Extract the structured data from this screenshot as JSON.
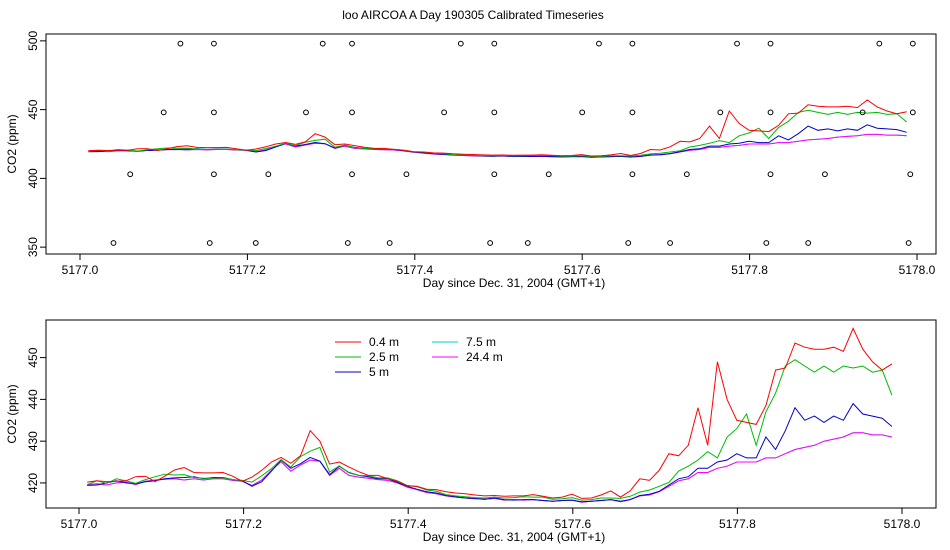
{
  "title": "loo AIRCOA A  Day 190305  Calibrated Timeseries",
  "chart_data": [
    {
      "type": "line",
      "xlabel": "Day since Dec. 31, 2004 (GMT+1)",
      "ylabel": "CO2 (ppm)",
      "xlim": [
        4.97,
        6.02
      ],
      "ylim": [
        345,
        505
      ],
      "xticks": [
        5177.0,
        5177.2,
        5177.4,
        5177.6,
        5177.8,
        5178.0
      ],
      "xtick_labels": [
        "5177.0",
        "5177.2",
        "5177.4",
        "5177.6",
        "5177.8",
        "5178.0"
      ],
      "yticks": [
        350,
        400,
        450,
        500
      ],
      "ytick_labels": [
        "350",
        "400",
        "450",
        "500"
      ],
      "series": [
        {
          "name": "0.4 m",
          "color": "#ff0000",
          "values": [
            420.2,
            420.5,
            420.3,
            420.4,
            420.5,
            421.5,
            421.6,
            420.3,
            421.6,
            423.1,
            423.7,
            422.5,
            422.4,
            422.4,
            422.5,
            421.6,
            420.4,
            421.4,
            423.0,
            425.0,
            426.1,
            424.7,
            426.5,
            432.5,
            430.0,
            424.5,
            425.0,
            423.8,
            422.7,
            421.8,
            421.8,
            421.0,
            420.4,
            419.3,
            419.2,
            418.5,
            418.4,
            417.9,
            417.6,
            417.4,
            417.1,
            416.9,
            417.0,
            416.8,
            416.9,
            416.9,
            417.2,
            416.8,
            416.4,
            416.6,
            417.3,
            416.3,
            416.4,
            417.1,
            418.1,
            416.6,
            418.1,
            421.0,
            420.6,
            423.0,
            427.0,
            426.5,
            429.0,
            438.0,
            429.0,
            449.0,
            440.0,
            435.0,
            434.5,
            434.0,
            438.5,
            447.0,
            447.5,
            453.5,
            452.5,
            452.0,
            452.0,
            452.5,
            451.5,
            457.0,
            452.0,
            449.0,
            447.0,
            448.5
          ]
        },
        {
          "name": "2.5 m",
          "color": "#00bb00",
          "values": [
            419.6,
            420.5,
            419.9,
            421.0,
            420.5,
            419.9,
            420.8,
            421.5,
            422.1,
            421.9,
            422.0,
            421.3,
            421.1,
            421.1,
            421.2,
            420.8,
            420.6,
            420.2,
            421.7,
            423.4,
            425.6,
            423.8,
            426.3,
            427.6,
            428.5,
            422.6,
            424.1,
            422.4,
            421.8,
            421.7,
            421.2,
            421.2,
            420.5,
            419.4,
            419.1,
            418.3,
            418.0,
            417.2,
            416.9,
            416.7,
            416.5,
            416.4,
            416.6,
            416.4,
            416.5,
            416.7,
            416.6,
            416.6,
            416.1,
            416.2,
            416.5,
            415.9,
            416.0,
            416.4,
            416.4,
            416.3,
            416.8,
            417.8,
            418.3,
            419.2,
            420.1,
            422.8,
            424.0,
            425.5,
            427.5,
            426.0,
            431.0,
            433.0,
            436.5,
            429.0,
            437.0,
            441.5,
            448.0,
            449.5,
            448.0,
            446.5,
            448.0,
            446.5,
            448.0,
            447.5,
            448.0,
            446.5,
            447.0,
            441.0
          ]
        },
        {
          "name": "5 m",
          "color": "#0000cc",
          "values": [
            419.4,
            419.5,
            420.0,
            420.5,
            420.0,
            419.8,
            420.3,
            420.5,
            421.0,
            421.2,
            421.3,
            421.5,
            421.0,
            421.3,
            421.3,
            420.8,
            420.5,
            419.2,
            420.3,
            422.8,
            425.5,
            423.5,
            424.6,
            426.1,
            425.2,
            422.0,
            424.0,
            422.5,
            421.8,
            421.5,
            421.0,
            421.0,
            420.1,
            419.2,
            418.5,
            417.9,
            417.6,
            417.0,
            416.7,
            416.4,
            416.3,
            416.1,
            416.4,
            416.0,
            415.9,
            416.0,
            416.0,
            415.8,
            415.6,
            415.8,
            415.9,
            415.5,
            415.6,
            415.8,
            416.0,
            415.6,
            416.0,
            417.0,
            417.3,
            418.0,
            419.5,
            421.0,
            421.5,
            423.5,
            423.5,
            425.0,
            425.5,
            427.0,
            426.0,
            426.0,
            431.0,
            428.0,
            432.5,
            438.0,
            435.0,
            436.0,
            434.5,
            436.0,
            435.0,
            439.0,
            436.5,
            436.0,
            435.5,
            433.5
          ]
        },
        {
          "name": "7.5 m",
          "color": "#00cccc",
          "values": [
            419.6,
            419.8,
            419.5,
            420.0,
            420.2,
            419.6,
            420.4,
            420.7,
            420.9,
            421.0,
            420.7,
            421.0,
            420.7,
            421.0,
            421.0,
            420.6,
            420.4,
            419.4,
            420.7,
            423.0,
            425.1,
            422.8,
            424.3,
            425.5,
            425.2,
            421.8,
            423.5,
            421.8,
            421.4,
            421.1,
            420.8,
            420.6,
            420.0,
            419.0,
            418.4,
            417.7,
            417.4,
            416.9,
            416.6,
            416.4,
            416.2,
            416.1,
            416.3,
            415.9,
            416.0,
            415.9,
            416.0,
            415.8,
            415.6,
            415.8,
            415.9,
            415.4,
            415.6,
            415.8,
            416.0,
            415.5,
            416.0,
            416.9,
            417.1,
            417.9,
            419.2,
            420.5,
            421.0,
            422.5,
            422.5,
            423.5,
            424.0,
            425.0,
            425.0,
            425.0,
            426.0,
            426.0,
            427.0,
            428.0,
            428.5,
            429.0,
            430.0,
            430.5,
            431.0,
            432.0,
            432.0,
            431.5,
            431.5,
            431.0
          ]
        },
        {
          "name": "24.4 m",
          "color": "#ff00ff",
          "values": [
            419.6,
            419.8,
            419.5,
            420.0,
            420.2,
            419.6,
            420.4,
            420.7,
            420.9,
            421.0,
            420.7,
            421.0,
            420.7,
            421.0,
            421.0,
            420.6,
            420.4,
            419.4,
            420.7,
            423.0,
            425.1,
            422.8,
            424.3,
            425.5,
            425.2,
            421.8,
            423.5,
            421.8,
            421.4,
            421.1,
            420.8,
            420.6,
            420.0,
            419.0,
            418.4,
            417.7,
            417.4,
            416.9,
            416.6,
            416.4,
            416.2,
            416.1,
            416.3,
            415.9,
            416.0,
            415.9,
            416.0,
            415.8,
            415.6,
            415.8,
            415.9,
            415.4,
            415.6,
            415.8,
            416.0,
            415.5,
            416.0,
            416.9,
            417.1,
            417.9,
            419.2,
            420.5,
            421.0,
            422.5,
            422.5,
            423.5,
            424.0,
            425.0,
            425.0,
            425.0,
            426.0,
            426.0,
            427.0,
            428.0,
            428.5,
            429.0,
            430.0,
            430.5,
            431.0,
            432.0,
            432.0,
            431.5,
            431.5,
            431.0
          ]
        }
      ],
      "x_offset_day": 5172,
      "x_values": "5177.01 + 0.0118*i",
      "markers": {
        "style": "open-circle",
        "x_days": [
          5177.04,
          5177.06,
          5177.1,
          5177.12,
          5177.155,
          5177.16,
          5177.16,
          5177.16,
          5177.21,
          5177.225,
          5177.27,
          5177.29,
          5177.32,
          5177.325,
          5177.325,
          5177.325,
          5177.37,
          5177.39,
          5177.435,
          5177.455,
          5177.49,
          5177.495,
          5177.495,
          5177.495,
          5177.535,
          5177.56,
          5177.6,
          5177.62,
          5177.655,
          5177.66,
          5177.66,
          5177.66,
          5177.705,
          5177.725,
          5177.765,
          5177.785,
          5177.82,
          5177.825,
          5177.825,
          5177.825,
          5177.87,
          5177.89,
          5177.935,
          5177.955,
          5177.99,
          5177.992,
          5177.995,
          5177.995
        ],
        "y_values": [
          353,
          403,
          448,
          498,
          353,
          403,
          448,
          498,
          353,
          403,
          448,
          498,
          353,
          403,
          448,
          498,
          353,
          403,
          448,
          498,
          353,
          403,
          448,
          498,
          353,
          403,
          448,
          498,
          353,
          403,
          448,
          498,
          353,
          403,
          448,
          498,
          353,
          403,
          448,
          498,
          353,
          403,
          448,
          498,
          353,
          403,
          448,
          498
        ]
      }
    },
    {
      "type": "line",
      "xlabel": "Day since Dec. 31, 2004 (GMT+1)",
      "ylabel": "CO2 (ppm)",
      "xlim": [
        4.95,
        6.03
      ],
      "ylim": [
        414,
        459
      ],
      "xticks": [
        5177.0,
        5177.2,
        5177.4,
        5177.6,
        5177.8,
        5178.0
      ],
      "xtick_labels": [
        "5177.0",
        "5177.2",
        "5177.4",
        "5177.6",
        "5177.8",
        "5178.0"
      ],
      "yticks": [
        420,
        430,
        440,
        450
      ],
      "ytick_labels": [
        "420",
        "430",
        "440",
        "450"
      ],
      "legend": {
        "placement": "top-center",
        "columns": 2,
        "entries": [
          "0.4 m",
          "2.5 m",
          "5 m",
          "7.5 m",
          "24.4 m"
        ]
      },
      "series_ref": "same as chart 1"
    }
  ]
}
